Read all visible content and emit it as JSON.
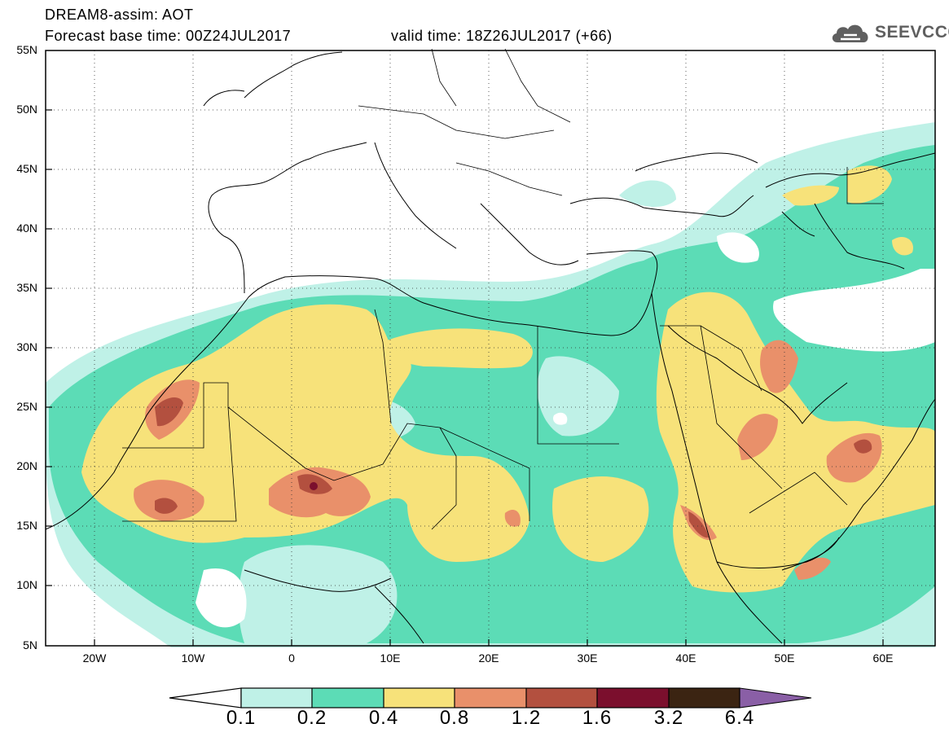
{
  "header": {
    "line1": "DREAM8-assim: AOT",
    "line2": "Forecast base time: 00Z24JUL2017",
    "valid_time": "valid time: 18Z26JUL2017 (+66)"
  },
  "logo": {
    "text": "SEEVCCC",
    "icon": "cloud-logo-icon"
  },
  "map": {
    "lat_labels": [
      "55N",
      "50N",
      "45N",
      "40N",
      "35N",
      "30N",
      "25N",
      "20N",
      "15N",
      "10N",
      "5N"
    ],
    "lon_labels": [
      "20W",
      "10W",
      "0",
      "10E",
      "20E",
      "30E",
      "40E",
      "50E",
      "60E"
    ],
    "lat_range": [
      5,
      55
    ],
    "lon_range": [
      -25,
      65
    ],
    "grid": "dotted"
  },
  "colorbar": {
    "labels": [
      "0.1",
      "0.2",
      "0.4",
      "0.8",
      "1.2",
      "1.6",
      "3.2",
      "6.4"
    ],
    "colors": [
      "#bff1e7",
      "#5cdcb6",
      "#f7e27a",
      "#e9906a",
      "#b3503f",
      "#7b0f2d",
      "#3b2412",
      "#8a5fa6"
    ]
  }
}
